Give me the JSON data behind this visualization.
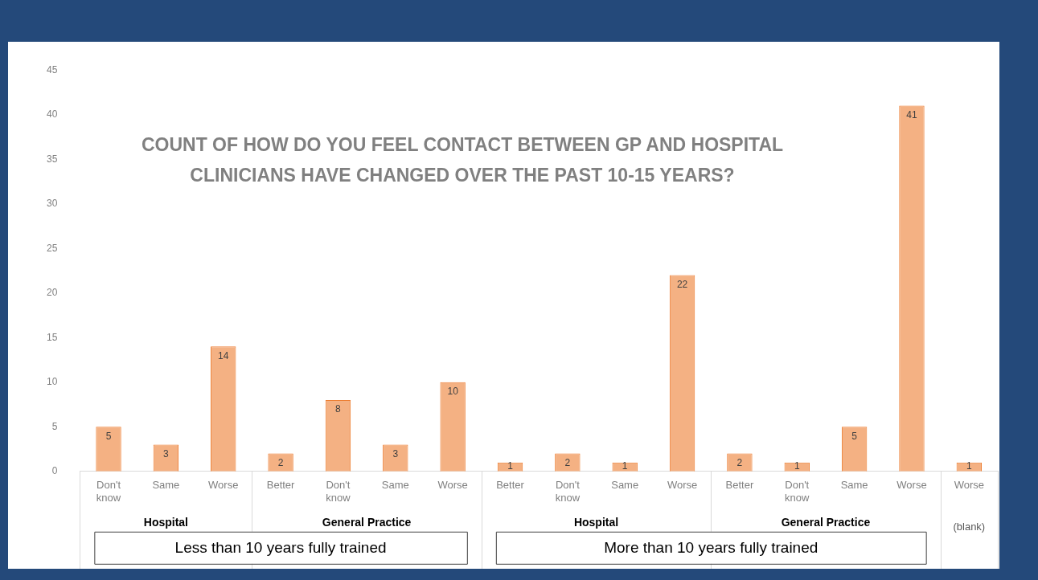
{
  "chart_data": {
    "type": "bar",
    "title": "COUNT OF HOW DO YOU FEEL CONTACT BETWEEN GP AND HOSPITAL CLINICIANS HAVE CHANGED OVER THE PAST 10-15 YEARS?",
    "categories": [
      "Don't know",
      "Same",
      "Worse",
      "Better",
      "Don't know",
      "Same",
      "Worse",
      "Better",
      "Don't know",
      "Same",
      "Worse",
      "Better",
      "Don't know",
      "Same",
      "Worse",
      "Worse"
    ],
    "values": [
      5,
      3,
      14,
      2,
      8,
      3,
      10,
      1,
      2,
      1,
      22,
      2,
      1,
      5,
      41,
      1
    ],
    "color": "#f4b183",
    "ylim": [
      0,
      45
    ],
    "yticks": [
      0,
      5,
      10,
      15,
      20,
      25,
      30,
      35,
      40,
      45
    ],
    "data_labels": true,
    "grid": false,
    "legend": false,
    "annotations": [
      "Hospital",
      "General Practice",
      "Hospital",
      "General Practice",
      "(blank)",
      "Less than 10 years fully trained",
      "More than 10 years fully trained"
    ]
  }
}
